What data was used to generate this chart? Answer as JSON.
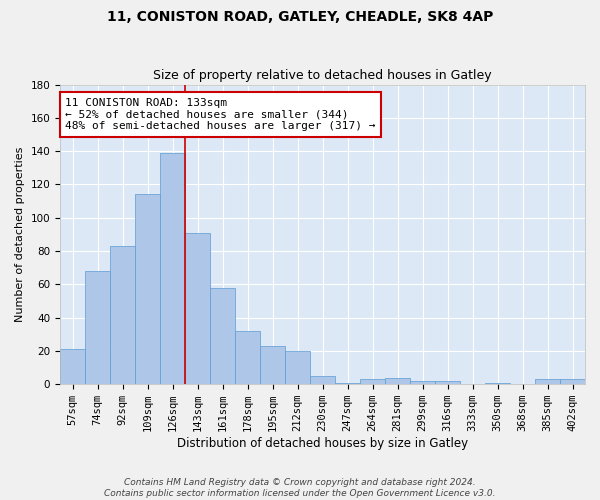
{
  "title1": "11, CONISTON ROAD, GATLEY, CHEADLE, SK8 4AP",
  "title2": "Size of property relative to detached houses in Gatley",
  "xlabel": "Distribution of detached houses by size in Gatley",
  "ylabel": "Number of detached properties",
  "bar_labels": [
    "57sqm",
    "74sqm",
    "92sqm",
    "109sqm",
    "126sqm",
    "143sqm",
    "161sqm",
    "178sqm",
    "195sqm",
    "212sqm",
    "230sqm",
    "247sqm",
    "264sqm",
    "281sqm",
    "299sqm",
    "316sqm",
    "333sqm",
    "350sqm",
    "368sqm",
    "385sqm",
    "402sqm"
  ],
  "bar_heights": [
    21,
    68,
    83,
    114,
    139,
    91,
    58,
    32,
    23,
    20,
    5,
    1,
    3,
    4,
    2,
    2,
    0,
    1,
    0,
    3,
    3
  ],
  "bar_color": "#aec6e8",
  "bar_edge_color": "#5b9bd5",
  "vline_x_index": 4,
  "vline_color": "#cc0000",
  "annotation_text": "11 CONISTON ROAD: 133sqm\n← 52% of detached houses are smaller (344)\n48% of semi-detached houses are larger (317) →",
  "annotation_box_color": "#ffffff",
  "annotation_box_edge_color": "#cc0000",
  "ylim": [
    0,
    180
  ],
  "yticks": [
    0,
    20,
    40,
    60,
    80,
    100,
    120,
    140,
    160,
    180
  ],
  "bg_color": "#dce8f5",
  "grid_color": "#ffffff",
  "footer": "Contains HM Land Registry data © Crown copyright and database right 2024.\nContains public sector information licensed under the Open Government Licence v3.0.",
  "title1_fontsize": 10,
  "title2_fontsize": 9,
  "xlabel_fontsize": 8.5,
  "ylabel_fontsize": 8,
  "tick_fontsize": 7.5,
  "annotation_fontsize": 8
}
